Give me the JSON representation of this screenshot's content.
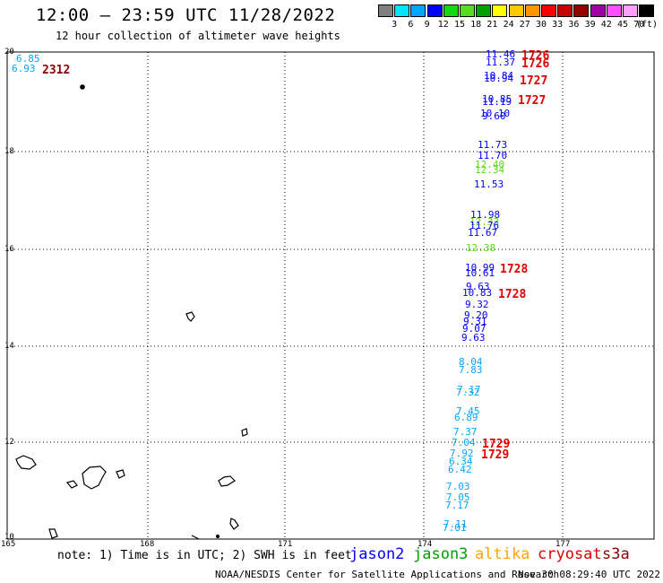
{
  "title": "12:00 – 23:59 UTC 11/28/2022",
  "subtitle": "12 hour collection of altimeter wave heights",
  "legend": {
    "unit": "(ft)",
    "colors": [
      "#808080",
      "#00e5ff",
      "#00a6ff",
      "#0000ff",
      "#14d814",
      "#5adc1e",
      "#00a000",
      "#ffff00",
      "#ffc800",
      "#ff9600",
      "#ff0000",
      "#c80000",
      "#960000",
      "#a000a0",
      "#ff50ff",
      "#ffa0ff",
      "#000000"
    ],
    "ticks": [
      "3",
      "6",
      "9",
      "12",
      "15",
      "18",
      "21",
      "24",
      "27",
      "30",
      "33",
      "36",
      "39",
      "42",
      "45",
      "70"
    ]
  },
  "axes": {
    "lat_labels": [
      "20",
      "18",
      "16",
      "14",
      "12",
      "10"
    ],
    "lon_labels": [
      "165",
      "168",
      "171",
      "174",
      "177"
    ],
    "lat_range": [
      10,
      20
    ],
    "lon_range": [
      165,
      179.4
    ]
  },
  "wave_heights": [
    {
      "id": "h1",
      "value": "6.85",
      "color": "#00a6ff"
    },
    {
      "id": "h2",
      "value": "6.93",
      "color": "#00a6ff"
    },
    {
      "id": "h3",
      "value": "11.46",
      "color": "#0000ff"
    },
    {
      "id": "h4",
      "value": "11.37",
      "color": "#0000ff"
    },
    {
      "id": "h5",
      "value": "10.84",
      "color": "#0000ff"
    },
    {
      "id": "h6",
      "value": "10.94",
      "color": "#0000ff"
    },
    {
      "id": "h7",
      "value": "10.85",
      "color": "#0000ff"
    },
    {
      "id": "h8",
      "value": "11.19",
      "color": "#0000ff"
    },
    {
      "id": "h9",
      "value": "10.10",
      "color": "#0000ff"
    },
    {
      "id": "h10",
      "value": "9.60",
      "color": "#0000ff"
    },
    {
      "id": "h11",
      "value": "11.73",
      "color": "#0000ff"
    },
    {
      "id": "h12",
      "value": "11.70",
      "color": "#0000ff"
    },
    {
      "id": "h13",
      "value": "12.40",
      "color": "#5adc1e"
    },
    {
      "id": "h14",
      "value": "12.34",
      "color": "#5adc1e"
    },
    {
      "id": "h15",
      "value": "11.53",
      "color": "#0000ff"
    },
    {
      "id": "h16",
      "value": "11.98",
      "color": "#0000ff"
    },
    {
      "id": "h17",
      "value": "12.33",
      "color": "#5adc1e"
    },
    {
      "id": "h18",
      "value": "11.76",
      "color": "#0000ff"
    },
    {
      "id": "h19",
      "value": "11.67",
      "color": "#0000ff"
    },
    {
      "id": "h20",
      "value": "12.38",
      "color": "#5adc1e"
    },
    {
      "id": "h21",
      "value": "10.99",
      "color": "#0000ff"
    },
    {
      "id": "h22",
      "value": "10.61",
      "color": "#0000ff"
    },
    {
      "id": "h23",
      "value": "9.63",
      "color": "#0000ff"
    },
    {
      "id": "h24",
      "value": "10.83",
      "color": "#0000ff"
    },
    {
      "id": "h25",
      "value": "9.32",
      "color": "#0000ff"
    },
    {
      "id": "h26",
      "value": "9.20",
      "color": "#0000ff"
    },
    {
      "id": "h27",
      "value": "9.31",
      "color": "#0000ff"
    },
    {
      "id": "h28",
      "value": "9.07",
      "color": "#0000ff"
    },
    {
      "id": "h29",
      "value": "9.63",
      "color": "#0000ff"
    },
    {
      "id": "h30",
      "value": "8.04",
      "color": "#00a6ff"
    },
    {
      "id": "h31",
      "value": "7.83",
      "color": "#00a6ff"
    },
    {
      "id": "h32",
      "value": "7.17",
      "color": "#00a6ff"
    },
    {
      "id": "h33",
      "value": "7.32",
      "color": "#00a6ff"
    },
    {
      "id": "h34",
      "value": "7.45",
      "color": "#00a6ff"
    },
    {
      "id": "h35",
      "value": "6.89",
      "color": "#00a6ff"
    },
    {
      "id": "h36",
      "value": "7.37",
      "color": "#00a6ff"
    },
    {
      "id": "h37",
      "value": "7.04",
      "color": "#00a6ff"
    },
    {
      "id": "h38",
      "value": "7.92",
      "color": "#00a6ff"
    },
    {
      "id": "h39",
      "value": "6.34",
      "color": "#00a6ff"
    },
    {
      "id": "h40",
      "value": "6.42",
      "color": "#00a6ff"
    },
    {
      "id": "h41",
      "value": "7.03",
      "color": "#00a6ff"
    },
    {
      "id": "h42",
      "value": "7.05",
      "color": "#00a6ff"
    },
    {
      "id": "h43",
      "value": "7.17",
      "color": "#00a6ff"
    },
    {
      "id": "h44",
      "value": "7.11",
      "color": "#00a6ff"
    },
    {
      "id": "h45",
      "value": "7.01",
      "color": "#00a6ff"
    }
  ],
  "pass_times": [
    {
      "id": "t1",
      "value": "2312",
      "color": "#8b0000"
    },
    {
      "id": "t2",
      "value": "1726",
      "color": "#e00000"
    },
    {
      "id": "t3",
      "value": "1726",
      "color": "#e00000"
    },
    {
      "id": "t4",
      "value": "1727",
      "color": "#e00000"
    },
    {
      "id": "t5",
      "value": "1727",
      "color": "#e00000"
    },
    {
      "id": "t6",
      "value": "1728",
      "color": "#e00000"
    },
    {
      "id": "t7",
      "value": "1728",
      "color": "#e00000"
    },
    {
      "id": "t8",
      "value": "1729",
      "color": "#e00000"
    },
    {
      "id": "t9",
      "value": "1729",
      "color": "#e00000"
    }
  ],
  "note": "note: 1) Time is in UTC; 2) SWH is in feet",
  "satellites": [
    {
      "name": "jason2",
      "color": "#0000ff"
    },
    {
      "name": "jason3",
      "color": "#00a000"
    },
    {
      "name": "altika",
      "color": "#ffa500"
    },
    {
      "name": "cryosat",
      "color": "#e00000"
    },
    {
      "name": "s3a",
      "color": "#8b0000"
    }
  ],
  "credit": "NOAA/NESDIS Center for Satellite Applications and Research",
  "timestamp": "Nov 30 08:29:40 UTC 2022"
}
